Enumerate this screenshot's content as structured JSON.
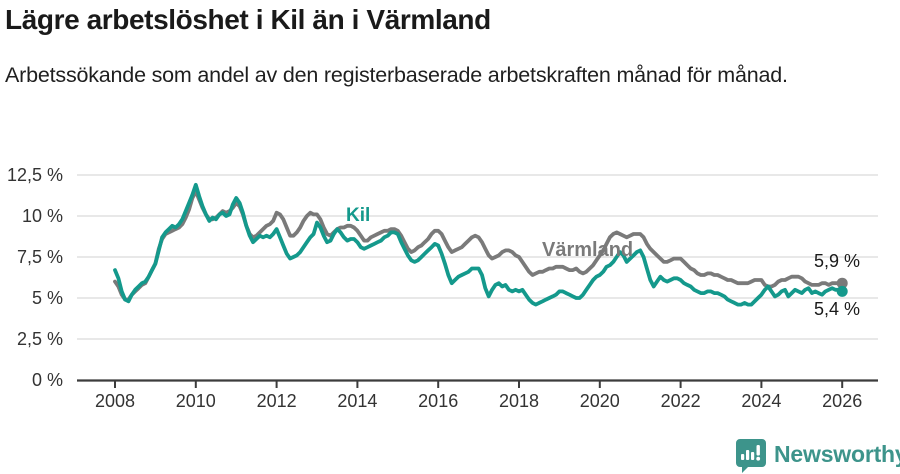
{
  "header": {
    "title": "Lägre arbetslöshet i Kil än i Värmland",
    "subtitle": "Arbetssökande som andel av den registerbaserade arbetskraften månad för månad."
  },
  "chart_data": {
    "type": "line",
    "unit": "%",
    "x_start": {
      "year": 2008,
      "month": 1
    },
    "x_end": {
      "year": 2026,
      "month": 1
    },
    "points_per_year": 12,
    "x_tick_years": [
      2008,
      2010,
      2012,
      2014,
      2016,
      2018,
      2020,
      2022,
      2024,
      2026
    ],
    "y_ticks": [
      {
        "value": 0,
        "label": "0 %"
      },
      {
        "value": 2.5,
        "label": "2,5 %"
      },
      {
        "value": 5,
        "label": "5 %"
      },
      {
        "value": 7.5,
        "label": "7,5 %"
      },
      {
        "value": 10,
        "label": "10 %"
      },
      {
        "value": 12.5,
        "label": "12,5 %"
      }
    ],
    "ylim": [
      0,
      13.3
    ],
    "grid": true,
    "legend_position": "inline-labels",
    "series": [
      {
        "name": "Kil",
        "color": "#14998c",
        "end_label": "5,4 %",
        "end_value": 5.4,
        "values": [
          6.7,
          6.2,
          5.4,
          4.9,
          4.8,
          5.2,
          5.5,
          5.7,
          5.9,
          6.0,
          6.3,
          6.7,
          7.1,
          7.9,
          8.7,
          9.0,
          9.2,
          9.4,
          9.3,
          9.5,
          9.8,
          10.3,
          10.8,
          11.3,
          11.9,
          11.2,
          10.6,
          10.1,
          9.7,
          9.9,
          9.8,
          10.1,
          10.2,
          10.0,
          10.1,
          10.7,
          11.1,
          10.8,
          10.2,
          9.4,
          8.8,
          8.4,
          8.6,
          8.8,
          8.7,
          8.8,
          8.7,
          8.9,
          9.2,
          8.7,
          8.2,
          7.7,
          7.4,
          7.5,
          7.6,
          7.8,
          8.1,
          8.4,
          8.7,
          8.9,
          9.6,
          9.3,
          8.8,
          8.4,
          8.5,
          8.9,
          9.2,
          9.0,
          8.7,
          8.5,
          8.6,
          8.6,
          8.4,
          8.1,
          8.0,
          8.1,
          8.2,
          8.3,
          8.4,
          8.5,
          8.7,
          8.8,
          9.0,
          9.0,
          8.9,
          8.4,
          8.0,
          7.6,
          7.3,
          7.2,
          7.3,
          7.5,
          7.7,
          7.9,
          8.1,
          8.3,
          8.2,
          7.7,
          7.1,
          6.4,
          5.9,
          6.1,
          6.3,
          6.4,
          6.5,
          6.6,
          6.8,
          6.8,
          6.8,
          6.4,
          5.6,
          5.1,
          5.5,
          5.8,
          5.9,
          5.7,
          5.8,
          5.5,
          5.4,
          5.5,
          5.4,
          5.5,
          5.2,
          4.9,
          4.7,
          4.6,
          4.7,
          4.8,
          4.9,
          5.0,
          5.1,
          5.2,
          5.4,
          5.4,
          5.3,
          5.2,
          5.1,
          5.0,
          5.0,
          5.2,
          5.5,
          5.8,
          6.1,
          6.3,
          6.4,
          6.6,
          6.9,
          7.0,
          7.2,
          7.5,
          7.8,
          7.6,
          7.2,
          7.4,
          7.6,
          7.8,
          7.9,
          7.5,
          6.8,
          6.1,
          5.7,
          6.0,
          6.3,
          6.1,
          6.0,
          6.1,
          6.2,
          6.2,
          6.1,
          5.9,
          5.8,
          5.7,
          5.5,
          5.4,
          5.3,
          5.3,
          5.4,
          5.4,
          5.3,
          5.3,
          5.2,
          5.1,
          4.9,
          4.8,
          4.7,
          4.6,
          4.6,
          4.7,
          4.6,
          4.6,
          4.8,
          5.0,
          5.2,
          5.5,
          5.7,
          5.4,
          5.1,
          5.2,
          5.4,
          5.5,
          5.1,
          5.3,
          5.5,
          5.4,
          5.3,
          5.5,
          5.6,
          5.3,
          5.4,
          5.3,
          5.2,
          5.4,
          5.5,
          5.6,
          5.5,
          5.5,
          5.4
        ]
      },
      {
        "name": "Värmland",
        "color": "#7a7a7a",
        "end_label": "5,9 %",
        "end_value": 5.9,
        "values": [
          6.0,
          5.7,
          5.2,
          4.9,
          4.9,
          5.2,
          5.4,
          5.6,
          5.8,
          5.9,
          6.3,
          6.7,
          7.1,
          8.0,
          8.6,
          8.9,
          9.0,
          9.1,
          9.2,
          9.3,
          9.5,
          9.9,
          10.4,
          11.1,
          11.5,
          11.0,
          10.5,
          10.1,
          9.8,
          9.8,
          9.9,
          10.1,
          10.3,
          10.2,
          10.3,
          10.5,
          10.8,
          10.6,
          10.1,
          9.4,
          8.9,
          8.7,
          8.8,
          9.0,
          9.2,
          9.4,
          9.5,
          9.7,
          10.2,
          10.1,
          9.8,
          9.3,
          8.8,
          8.8,
          9.0,
          9.3,
          9.7,
          10.0,
          10.2,
          10.1,
          10.1,
          9.8,
          9.3,
          8.9,
          8.8,
          9.0,
          9.2,
          9.3,
          9.3,
          9.4,
          9.4,
          9.3,
          9.1,
          8.8,
          8.5,
          8.5,
          8.7,
          8.8,
          8.9,
          9.0,
          9.1,
          9.1,
          9.2,
          9.2,
          9.1,
          8.8,
          8.4,
          8.0,
          7.8,
          7.9,
          8.1,
          8.2,
          8.4,
          8.6,
          8.9,
          9.1,
          9.1,
          8.9,
          8.5,
          8.1,
          7.8,
          7.9,
          8.0,
          8.1,
          8.3,
          8.5,
          8.7,
          8.8,
          8.7,
          8.4,
          8.0,
          7.6,
          7.4,
          7.5,
          7.6,
          7.8,
          7.9,
          7.9,
          7.8,
          7.6,
          7.5,
          7.2,
          6.9,
          6.6,
          6.4,
          6.5,
          6.6,
          6.6,
          6.7,
          6.8,
          6.8,
          6.9,
          6.9,
          6.9,
          6.8,
          6.7,
          6.7,
          6.8,
          6.6,
          6.5,
          6.6,
          6.8,
          7.0,
          7.3,
          7.6,
          7.9,
          8.3,
          8.7,
          8.9,
          9.0,
          8.9,
          8.8,
          8.7,
          8.8,
          8.9,
          8.9,
          8.9,
          8.7,
          8.3,
          8.0,
          7.8,
          7.6,
          7.4,
          7.2,
          7.2,
          7.3,
          7.4,
          7.4,
          7.4,
          7.2,
          7.0,
          6.8,
          6.7,
          6.5,
          6.4,
          6.4,
          6.5,
          6.5,
          6.4,
          6.4,
          6.3,
          6.2,
          6.1,
          6.1,
          6.0,
          5.9,
          5.9,
          5.9,
          5.9,
          6.0,
          6.1,
          6.1,
          6.1,
          5.8,
          5.7,
          5.7,
          5.8,
          6.0,
          6.1,
          6.1,
          6.2,
          6.3,
          6.3,
          6.3,
          6.2,
          6.0,
          5.9,
          5.8,
          5.8,
          5.8,
          5.9,
          5.9,
          5.8,
          5.9,
          5.9,
          5.9,
          5.9
        ]
      }
    ]
  },
  "theme": {
    "grid_color": "#e0e0e0",
    "axis_color": "#3c3c3c",
    "tick_text_color": "#333333"
  },
  "footer": {
    "brand": "Newsworthy",
    "brand_color": "#3d948b"
  }
}
